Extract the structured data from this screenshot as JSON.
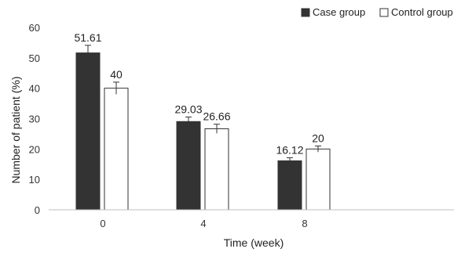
{
  "chart_data": {
    "type": "bar",
    "categories": [
      "0",
      "4",
      "8"
    ],
    "series": [
      {
        "name": "Case group",
        "values": [
          51.61,
          29.03,
          16.12
        ],
        "errors": [
          2.5,
          1.5,
          1.0
        ],
        "labels": [
          "51.61",
          "29.03",
          "16.12"
        ],
        "color": "#333333"
      },
      {
        "name": "Control group",
        "values": [
          40,
          26.66,
          20
        ],
        "errors": [
          2.0,
          1.5,
          1.0
        ],
        "labels": [
          "40",
          "26.66",
          "20"
        ],
        "color": "#ffffff"
      }
    ],
    "xlabel": "Time (week)",
    "ylabel": "Number of patient (%)",
    "ylim": [
      0,
      60
    ],
    "yticks": [
      "0",
      "10",
      "20",
      "30",
      "40",
      "50",
      "60"
    ],
    "grid": false,
    "legend_position": "top-right"
  }
}
